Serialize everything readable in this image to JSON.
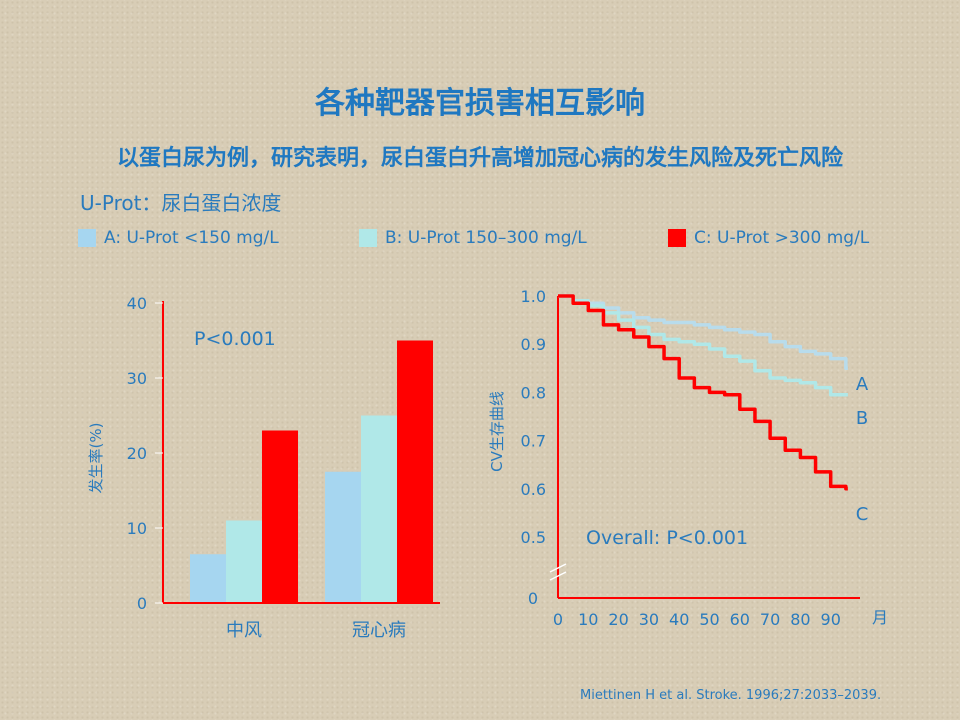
{
  "title": "各种靶器官损害相互影响",
  "subtitle": "以蛋白尿为例，研究表明，尿白蛋白升高增加冠心病的发生风险及死亡风险",
  "uprot_label": "U-Prot：尿白蛋白浓度",
  "legend": [
    {
      "label": "A: U-Prot <150 mg/L",
      "color": "#a6d6f0"
    },
    {
      "label": "B: U-Prot 150–300 mg/L",
      "color": "#b0e8e8"
    },
    {
      "label": "C: U-Prot >300 mg/L",
      "color": "#ff0000"
    }
  ],
  "citation": "Miettinen H et al. Stroke. 1996;27:2033–2039.",
  "chart_data": [
    {
      "type": "bar",
      "ylabel": "发生率(%)",
      "ylim": [
        0,
        40
      ],
      "yticks": [
        0,
        10,
        20,
        30,
        40
      ],
      "categories": [
        "中风",
        "冠心病"
      ],
      "annotation": "P<0.001",
      "series": [
        {
          "values": [
            6.5,
            17.5
          ],
          "color": "#a6d6f0"
        },
        {
          "values": [
            11,
            25
          ],
          "color": "#b0e8e8"
        },
        {
          "values": [
            23,
            35
          ],
          "color": "#ff0000"
        }
      ]
    },
    {
      "type": "line",
      "ylabel": "CV生存曲线",
      "xlabel": "月",
      "xlim": [
        0,
        100
      ],
      "ylim": [
        0.5,
        1.0
      ],
      "xticks": [
        0,
        10,
        20,
        30,
        40,
        50,
        60,
        70,
        80,
        90
      ],
      "yticks": [
        0.5,
        0.6,
        0.7,
        0.8,
        0.9,
        1.0
      ],
      "yticks_labels": [
        "0.5",
        "0.6",
        "0.7",
        "0.8",
        "0.9",
        "1.0"
      ],
      "zero_label": "0",
      "annotation": "Overall:  P<0.001",
      "series": [
        {
          "name": "A",
          "color": "#b8dcec",
          "x": [
            0,
            5,
            10,
            15,
            20,
            25,
            30,
            35,
            40,
            45,
            50,
            55,
            60,
            65,
            70,
            75,
            80,
            85,
            90,
            95
          ],
          "y": [
            1.0,
            0.99,
            0.985,
            0.975,
            0.965,
            0.955,
            0.95,
            0.945,
            0.945,
            0.94,
            0.935,
            0.93,
            0.925,
            0.92,
            0.905,
            0.895,
            0.885,
            0.88,
            0.87,
            0.85
          ]
        },
        {
          "name": "B",
          "color": "#b0e8e8",
          "x": [
            0,
            5,
            10,
            15,
            20,
            25,
            30,
            35,
            40,
            45,
            50,
            55,
            60,
            65,
            70,
            75,
            80,
            85,
            90,
            95
          ],
          "y": [
            1.0,
            0.99,
            0.98,
            0.965,
            0.95,
            0.935,
            0.92,
            0.91,
            0.905,
            0.9,
            0.89,
            0.875,
            0.865,
            0.845,
            0.83,
            0.825,
            0.82,
            0.81,
            0.795,
            0.795
          ]
        },
        {
          "name": "C",
          "color": "#ff0000",
          "x": [
            0,
            5,
            10,
            15,
            20,
            25,
            30,
            35,
            40,
            45,
            50,
            55,
            60,
            65,
            70,
            75,
            80,
            85,
            90,
            95
          ],
          "y": [
            1.0,
            0.985,
            0.97,
            0.94,
            0.93,
            0.915,
            0.895,
            0.87,
            0.83,
            0.81,
            0.8,
            0.795,
            0.765,
            0.74,
            0.705,
            0.68,
            0.665,
            0.635,
            0.605,
            0.6
          ]
        }
      ]
    }
  ]
}
